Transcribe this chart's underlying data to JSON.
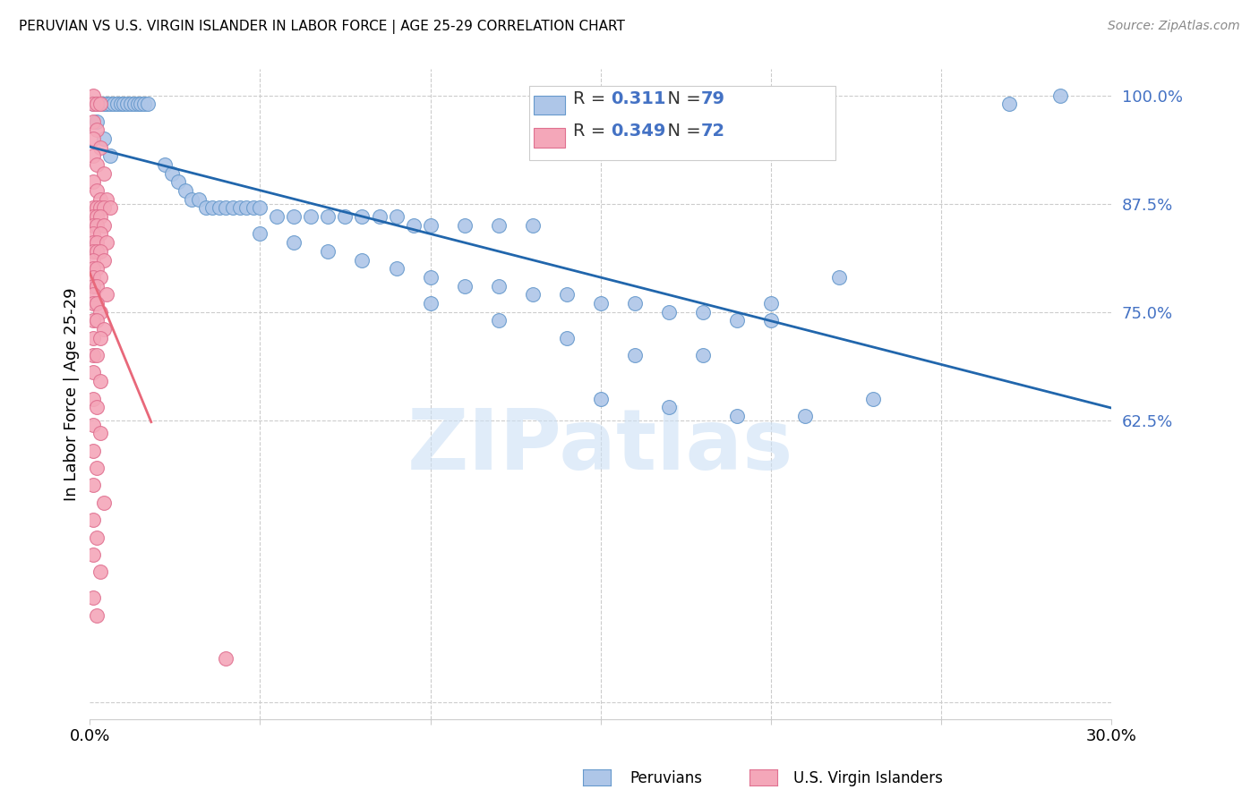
{
  "title": "PERUVIAN VS U.S. VIRGIN ISLANDER IN LABOR FORCE | AGE 25-29 CORRELATION CHART",
  "source": "Source: ZipAtlas.com",
  "ylabel": "In Labor Force | Age 25-29",
  "xlim": [
    0.0,
    0.3
  ],
  "ylim": [
    0.28,
    1.03
  ],
  "ytick_positions": [
    0.625,
    0.75,
    0.875,
    1.0
  ],
  "ytick_labels": [
    "62.5%",
    "75.0%",
    "87.5%",
    "100.0%"
  ],
  "blue_R": 0.311,
  "blue_N": 79,
  "pink_R": 0.349,
  "pink_N": 72,
  "blue_color": "#aec6e8",
  "blue_edge_color": "#6699cc",
  "pink_color": "#f4a7b9",
  "pink_edge_color": "#e07090",
  "blue_line_color": "#2166ac",
  "pink_line_color": "#e8687a",
  "legend_blue_label": "Peruvians",
  "legend_pink_label": "U.S. Virgin Islanders",
  "watermark": "ZIPatlas",
  "blue_points": [
    [
      0.001,
      0.99
    ],
    [
      0.002,
      0.99
    ],
    [
      0.003,
      0.99
    ],
    [
      0.004,
      0.99
    ],
    [
      0.005,
      0.99
    ],
    [
      0.006,
      0.99
    ],
    [
      0.007,
      0.99
    ],
    [
      0.008,
      0.99
    ],
    [
      0.009,
      0.99
    ],
    [
      0.01,
      0.99
    ],
    [
      0.011,
      0.99
    ],
    [
      0.012,
      0.99
    ],
    [
      0.013,
      0.99
    ],
    [
      0.014,
      0.99
    ],
    [
      0.015,
      0.99
    ],
    [
      0.016,
      0.99
    ],
    [
      0.017,
      0.99
    ],
    [
      0.002,
      0.97
    ],
    [
      0.004,
      0.95
    ],
    [
      0.006,
      0.93
    ],
    [
      0.022,
      0.92
    ],
    [
      0.024,
      0.91
    ],
    [
      0.026,
      0.9
    ],
    [
      0.028,
      0.89
    ],
    [
      0.03,
      0.88
    ],
    [
      0.032,
      0.88
    ],
    [
      0.034,
      0.87
    ],
    [
      0.036,
      0.87
    ],
    [
      0.038,
      0.87
    ],
    [
      0.04,
      0.87
    ],
    [
      0.042,
      0.87
    ],
    [
      0.044,
      0.87
    ],
    [
      0.046,
      0.87
    ],
    [
      0.048,
      0.87
    ],
    [
      0.05,
      0.87
    ],
    [
      0.055,
      0.86
    ],
    [
      0.06,
      0.86
    ],
    [
      0.065,
      0.86
    ],
    [
      0.07,
      0.86
    ],
    [
      0.075,
      0.86
    ],
    [
      0.08,
      0.86
    ],
    [
      0.085,
      0.86
    ],
    [
      0.09,
      0.86
    ],
    [
      0.095,
      0.85
    ],
    [
      0.1,
      0.85
    ],
    [
      0.11,
      0.85
    ],
    [
      0.12,
      0.85
    ],
    [
      0.13,
      0.85
    ],
    [
      0.05,
      0.84
    ],
    [
      0.06,
      0.83
    ],
    [
      0.07,
      0.82
    ],
    [
      0.08,
      0.81
    ],
    [
      0.09,
      0.8
    ],
    [
      0.1,
      0.79
    ],
    [
      0.11,
      0.78
    ],
    [
      0.12,
      0.78
    ],
    [
      0.13,
      0.77
    ],
    [
      0.14,
      0.77
    ],
    [
      0.15,
      0.76
    ],
    [
      0.16,
      0.76
    ],
    [
      0.17,
      0.75
    ],
    [
      0.18,
      0.75
    ],
    [
      0.19,
      0.74
    ],
    [
      0.2,
      0.74
    ],
    [
      0.1,
      0.76
    ],
    [
      0.12,
      0.74
    ],
    [
      0.14,
      0.72
    ],
    [
      0.16,
      0.7
    ],
    [
      0.18,
      0.7
    ],
    [
      0.2,
      0.76
    ],
    [
      0.22,
      0.79
    ],
    [
      0.15,
      0.65
    ],
    [
      0.17,
      0.64
    ],
    [
      0.19,
      0.63
    ],
    [
      0.21,
      0.63
    ],
    [
      0.23,
      0.65
    ],
    [
      0.27,
      0.99
    ],
    [
      0.285,
      1.0
    ]
  ],
  "pink_points": [
    [
      0.001,
      1.0
    ],
    [
      0.001,
      0.99
    ],
    [
      0.002,
      0.99
    ],
    [
      0.003,
      0.99
    ],
    [
      0.001,
      0.97
    ],
    [
      0.002,
      0.96
    ],
    [
      0.001,
      0.95
    ],
    [
      0.003,
      0.94
    ],
    [
      0.001,
      0.93
    ],
    [
      0.002,
      0.92
    ],
    [
      0.004,
      0.91
    ],
    [
      0.001,
      0.9
    ],
    [
      0.002,
      0.89
    ],
    [
      0.003,
      0.88
    ],
    [
      0.005,
      0.88
    ],
    [
      0.001,
      0.87
    ],
    [
      0.002,
      0.87
    ],
    [
      0.003,
      0.87
    ],
    [
      0.004,
      0.87
    ],
    [
      0.006,
      0.87
    ],
    [
      0.001,
      0.86
    ],
    [
      0.002,
      0.86
    ],
    [
      0.003,
      0.86
    ],
    [
      0.001,
      0.85
    ],
    [
      0.002,
      0.85
    ],
    [
      0.004,
      0.85
    ],
    [
      0.001,
      0.84
    ],
    [
      0.003,
      0.84
    ],
    [
      0.001,
      0.83
    ],
    [
      0.002,
      0.83
    ],
    [
      0.005,
      0.83
    ],
    [
      0.001,
      0.82
    ],
    [
      0.002,
      0.82
    ],
    [
      0.003,
      0.82
    ],
    [
      0.001,
      0.81
    ],
    [
      0.004,
      0.81
    ],
    [
      0.001,
      0.8
    ],
    [
      0.002,
      0.8
    ],
    [
      0.001,
      0.79
    ],
    [
      0.003,
      0.79
    ],
    [
      0.001,
      0.78
    ],
    [
      0.002,
      0.78
    ],
    [
      0.001,
      0.77
    ],
    [
      0.005,
      0.77
    ],
    [
      0.001,
      0.76
    ],
    [
      0.002,
      0.76
    ],
    [
      0.003,
      0.75
    ],
    [
      0.001,
      0.74
    ],
    [
      0.002,
      0.74
    ],
    [
      0.004,
      0.73
    ],
    [
      0.001,
      0.72
    ],
    [
      0.003,
      0.72
    ],
    [
      0.001,
      0.7
    ],
    [
      0.002,
      0.7
    ],
    [
      0.001,
      0.68
    ],
    [
      0.003,
      0.67
    ],
    [
      0.001,
      0.65
    ],
    [
      0.002,
      0.64
    ],
    [
      0.001,
      0.62
    ],
    [
      0.003,
      0.61
    ],
    [
      0.001,
      0.59
    ],
    [
      0.002,
      0.57
    ],
    [
      0.001,
      0.55
    ],
    [
      0.004,
      0.53
    ],
    [
      0.001,
      0.51
    ],
    [
      0.002,
      0.49
    ],
    [
      0.001,
      0.47
    ],
    [
      0.003,
      0.45
    ],
    [
      0.001,
      0.42
    ],
    [
      0.002,
      0.4
    ],
    [
      0.04,
      0.35
    ]
  ]
}
